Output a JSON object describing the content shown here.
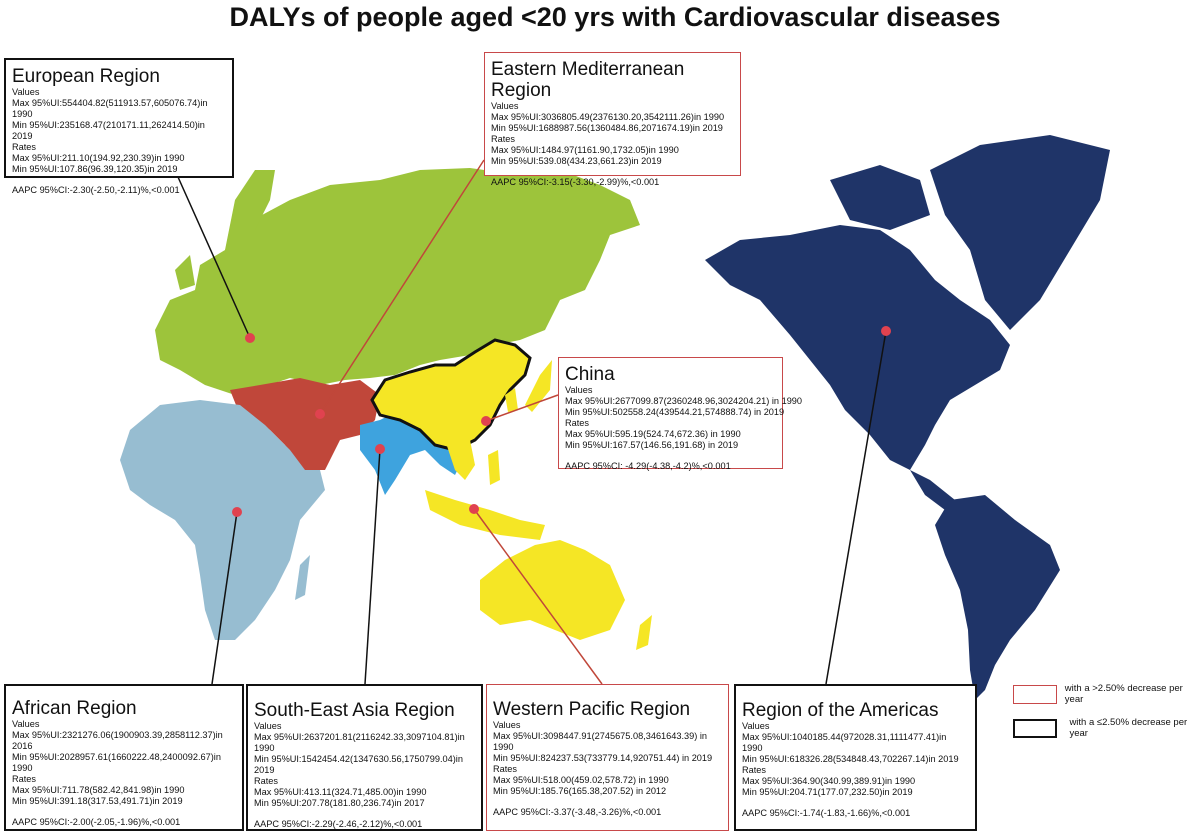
{
  "title": "DALYs of people aged <20 yrs with Cardiovascular diseases",
  "colors": {
    "european": "#9dc43b",
    "eastern_mediterranean": "#c0473a",
    "african": "#97bdd1",
    "south_east_asia": "#3ea3de",
    "western_pacific": "#f5e625",
    "americas": "#1f3468",
    "dot": "#e0424f",
    "red_border": "#c8494a"
  },
  "regions": {
    "european": {
      "name": "European Region",
      "values_label": "Values",
      "max_values": "Max 95%UI:554404.82(511913.57,605076.74)in 1990",
      "min_values": "Min 95%UI:235168.47(210171.11,262414.50)in 2019",
      "rates_label": "Rates",
      "max_rates": "Max 95%UI:211.10(194.92,230.39)in 1990",
      "min_rates": "Min 95%UI:107.86(96.39,120.35)in 2019",
      "aapc": "AAPC 95%CI:-2.30(-2.50,-2.11)%,<0.001"
    },
    "eastern_mediterranean": {
      "name": "Eastern Mediterranean Region",
      "values_label": "Values",
      "max_values": "Max 95%UI:3036805.49(2376130.20,3542111.26)in 1990",
      "min_values": "Min 95%UI:1688987.56(1360484.86,2071674.19)in 2019",
      "rates_label": "Rates",
      "max_rates": "Max 95%UI:1484.97(1161.90,1732.05)in 1990",
      "min_rates": "Min 95%UI:539.08(434.23,661.23)in 2019",
      "aapc": "AAPC 95%CI:-3.15(-3.30,-2.99)%,<0.001"
    },
    "china": {
      "name": "China",
      "values_label": "Values",
      "max_values": "Max 95%UI:2677099.87(2360248.96,3024204.21) in 1990",
      "min_values": "Min 95%UI:502558.24(439544.21,574888.74) in 2019",
      "rates_label": "Rates",
      "max_rates": "Max 95%UI:595.19(524.74,672.36) in 1990",
      "min_rates": "Min 95%UI:167.57(146.56,191.68) in 2019",
      "aapc": "AAPC 95%CI: -4.29(-4.38,-4.2)%,<0.001"
    },
    "african": {
      "name": "African Region",
      "values_label": "Values",
      "max_values": "Max 95%UI:2321276.06(1900903.39,2858112.37)in 2016",
      "min_values": "Min 95%UI:2028957.61(1660222.48,2400092.67)in 1990",
      "rates_label": "Rates",
      "max_rates": "Max 95%UI:711.78(582.42,841.98)in 1990",
      "min_rates": "Min 95%UI:391.18(317.53,491.71)in 2019",
      "aapc": "AAPC 95%CI:-2.00(-2.05,-1.96)%,<0.001"
    },
    "south_east_asia": {
      "name": "South-East Asia Region",
      "values_label": "Values",
      "max_values": "Max 95%UI:2637201.81(2116242.33,3097104.81)in 1990",
      "min_values": "Min 95%UI:1542454.42(1347630.56,1750799.04)in 2019",
      "rates_label": "Rates",
      "max_rates": "Max 95%UI:413.11(324.71,485.00)in 1990",
      "min_rates": "Min 95%UI:207.78(181.80,236.74)in 2017",
      "aapc": "AAPC 95%CI:-2.29(-2.46,-2.12)%,<0.001"
    },
    "western_pacific": {
      "name": "Western Pacific Region",
      "values_label": "Values",
      "max_values": "Max 95%UI:3098447.91(2745675.08,3461643.39) in 1990",
      "min_values": "Min 95%UI:824237.53(733779.14,920751.44) in 2019",
      "rates_label": "Rates",
      "max_rates": "Max 95%UI:518.00(459.02,578.72) in 1990",
      "min_rates": "Min 95%UI:185.76(165.38,207.52) in 2012",
      "aapc": "AAPC 95%CI:-3.37(-3.48,-3.26)%,<0.001"
    },
    "americas": {
      "name": "Region of the Americas",
      "values_label": "Values",
      "max_values": "Max 95%UI:1040185.44(972028.31,1111477.41)in 1990",
      "min_values": "Min 95%UI:618326.28(534848.43,702267.14)in 2019",
      "rates_label": "Rates",
      "max_rates": "Max 95%UI:364.90(340.99,389.91)in 1990",
      "min_rates": "Min 95%UI:204.71(177.07,232.50)in 2019",
      "aapc": "AAPC 95%CI:-1.74(-1.83,-1.66)%,<0.001"
    }
  },
  "legend": {
    "red": "with a >2.50% decrease per year",
    "black": "with a ≤2.50% decrease per year"
  }
}
